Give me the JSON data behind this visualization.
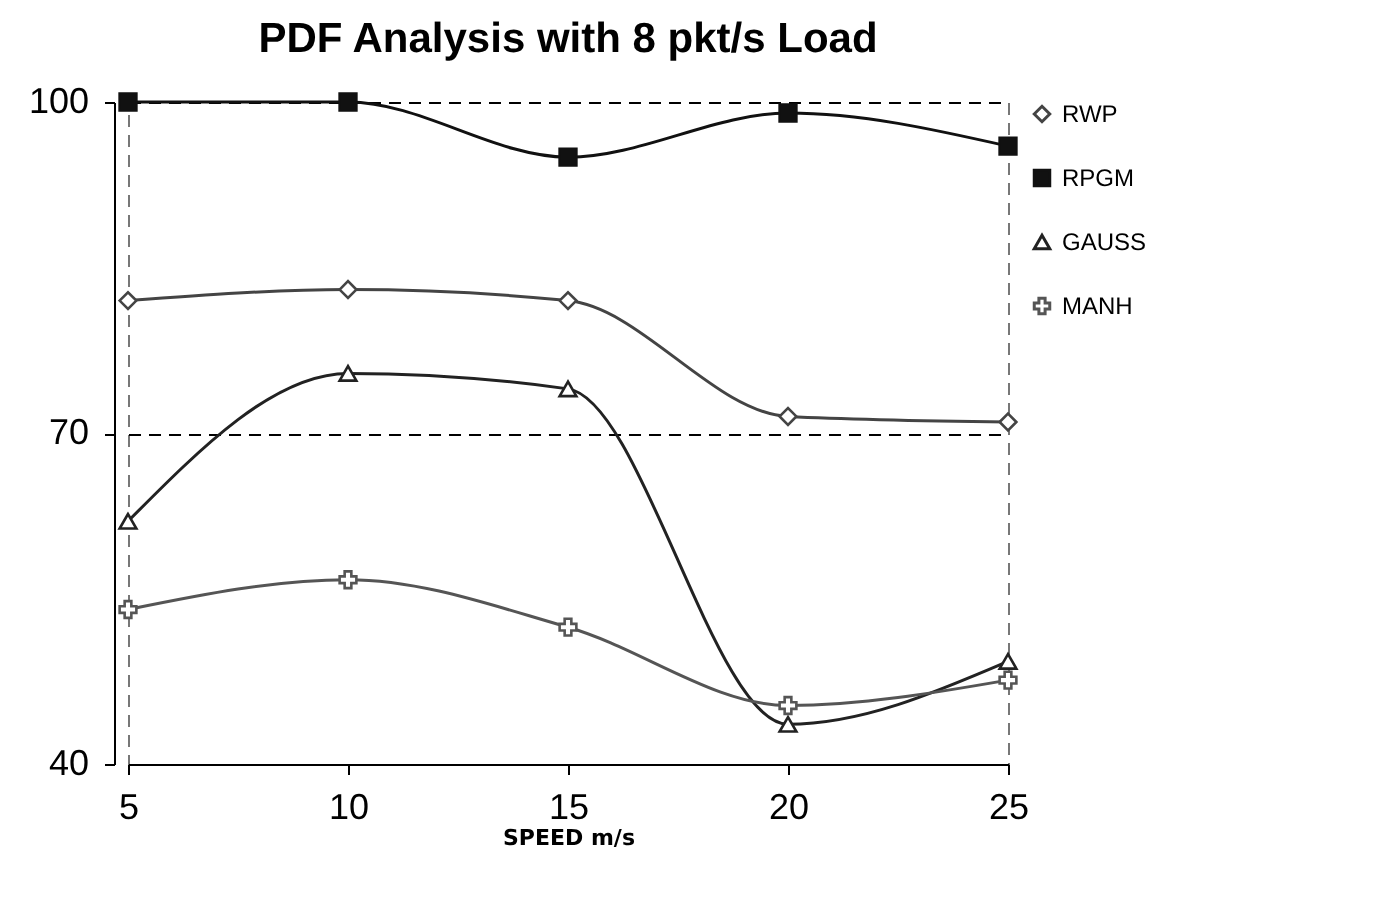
{
  "chart_data": {
    "type": "line",
    "title": "PDF Analysis with 8 pkt/s Load",
    "xlabel": "SPEED m/s",
    "x": [
      5,
      10,
      15,
      20,
      25
    ],
    "xlim": [
      5,
      25
    ],
    "xticks": [
      5,
      10,
      15,
      20,
      25
    ],
    "ylim": [
      40,
      100
    ],
    "yticks": [
      40,
      70,
      100
    ],
    "grid": "y",
    "legend": "right",
    "series": [
      {
        "name": "RWP",
        "color": "#444444",
        "marker": "diamond",
        "values": [
          82,
          83,
          82,
          71.5,
          71
        ]
      },
      {
        "name": "RPGM",
        "color": "#111111",
        "marker": "square",
        "values": [
          100,
          100,
          95,
          99,
          96
        ]
      },
      {
        "name": "GAUSS",
        "color": "#222222",
        "marker": "triangle",
        "values": [
          62,
          75.4,
          74,
          43.6,
          49.3
        ]
      },
      {
        "name": "MANH",
        "color": "#555555",
        "marker": "cross",
        "values": [
          54,
          56.7,
          52.4,
          45.3,
          47.6
        ]
      }
    ]
  }
}
